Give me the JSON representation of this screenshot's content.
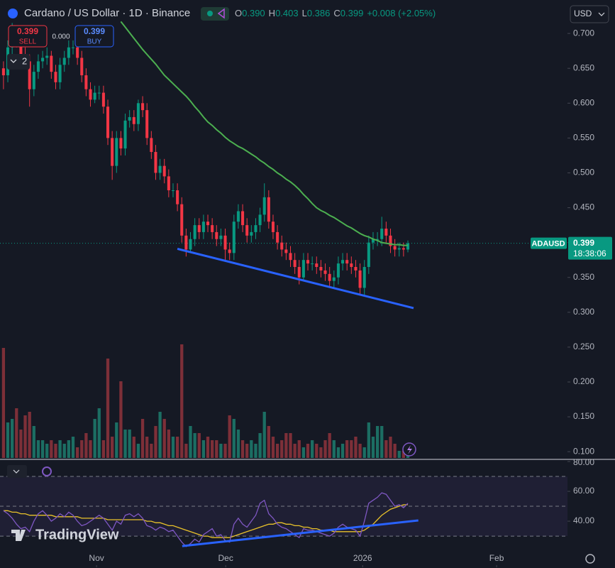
{
  "chart_data": {
    "type": "candlestick",
    "title": "Cardano / US Dollar · 1D · Binance",
    "legend": {
      "o_label": "O",
      "open": "0.390",
      "h_label": "H",
      "high": "0.403",
      "l_label": "L",
      "low": "0.386",
      "c_label": "C",
      "close": "0.399",
      "change": "+0.008 (+2.05%)"
    },
    "up_color": "#089981",
    "down_color": "#f23645",
    "open": [
      0.65,
      0.64,
      0.68,
      0.7,
      0.69,
      0.67,
      0.66,
      0.62,
      0.645,
      0.66,
      0.665,
      0.668,
      0.645,
      0.63,
      0.655,
      0.665,
      0.68,
      0.68,
      0.665,
      0.64,
      0.62,
      0.605,
      0.615,
      0.615,
      0.595,
      0.55,
      0.51,
      0.55,
      0.535,
      0.575,
      0.58,
      0.57,
      0.6,
      0.59,
      0.55,
      0.53,
      0.5,
      0.51,
      0.495,
      0.475,
      0.475,
      0.455,
      0.41,
      0.39,
      0.405,
      0.425,
      0.415,
      0.43,
      0.425,
      0.415,
      0.405,
      0.41,
      0.39,
      0.385,
      0.43,
      0.445,
      0.425,
      0.41,
      0.415,
      0.425,
      0.44,
      0.465,
      0.43,
      0.415,
      0.4,
      0.39,
      0.385,
      0.375,
      0.365,
      0.35,
      0.375,
      0.37,
      0.37,
      0.365,
      0.36,
      0.355,
      0.345,
      0.35,
      0.37,
      0.375,
      0.37,
      0.365,
      0.36,
      0.335,
      0.365,
      0.4,
      0.405,
      0.405,
      0.42,
      0.41,
      0.395,
      0.39,
      0.392,
      0.39
    ],
    "high": [
      0.66,
      0.69,
      0.715,
      0.71,
      0.7,
      0.68,
      0.67,
      0.655,
      0.67,
      0.675,
      0.68,
      0.675,
      0.655,
      0.665,
      0.675,
      0.69,
      0.69,
      0.69,
      0.675,
      0.65,
      0.63,
      0.625,
      0.625,
      0.625,
      0.605,
      0.56,
      0.56,
      0.56,
      0.585,
      0.59,
      0.59,
      0.605,
      0.61,
      0.6,
      0.56,
      0.54,
      0.52,
      0.52,
      0.505,
      0.485,
      0.485,
      0.465,
      0.42,
      0.415,
      0.435,
      0.435,
      0.44,
      0.44,
      0.435,
      0.425,
      0.42,
      0.42,
      0.4,
      0.44,
      0.455,
      0.455,
      0.435,
      0.425,
      0.435,
      0.45,
      0.485,
      0.475,
      0.44,
      0.425,
      0.41,
      0.4,
      0.395,
      0.385,
      0.375,
      0.385,
      0.385,
      0.38,
      0.38,
      0.375,
      0.37,
      0.365,
      0.36,
      0.38,
      0.385,
      0.385,
      0.38,
      0.375,
      0.37,
      0.375,
      0.41,
      0.415,
      0.415,
      0.437,
      0.43,
      0.42,
      0.405,
      0.4,
      0.4,
      0.403
    ],
    "low": [
      0.62,
      0.63,
      0.67,
      0.68,
      0.66,
      0.65,
      0.595,
      0.61,
      0.635,
      0.65,
      0.655,
      0.635,
      0.62,
      0.62,
      0.645,
      0.655,
      0.67,
      0.655,
      0.63,
      0.61,
      0.595,
      0.6,
      0.605,
      0.585,
      0.54,
      0.49,
      0.5,
      0.525,
      0.525,
      0.565,
      0.56,
      0.56,
      0.58,
      0.54,
      0.52,
      0.49,
      0.49,
      0.485,
      0.465,
      0.465,
      0.445,
      0.4,
      0.38,
      0.385,
      0.395,
      0.405,
      0.405,
      0.415,
      0.405,
      0.395,
      0.395,
      0.375,
      0.375,
      0.375,
      0.42,
      0.415,
      0.4,
      0.4,
      0.405,
      0.415,
      0.43,
      0.42,
      0.405,
      0.39,
      0.38,
      0.375,
      0.365,
      0.355,
      0.34,
      0.345,
      0.36,
      0.36,
      0.355,
      0.35,
      0.345,
      0.335,
      0.335,
      0.34,
      0.36,
      0.36,
      0.355,
      0.35,
      0.325,
      0.325,
      0.355,
      0.39,
      0.395,
      0.395,
      0.4,
      0.385,
      0.38,
      0.38,
      0.38,
      0.386
    ],
    "close": [
      0.64,
      0.68,
      0.7,
      0.69,
      0.67,
      0.66,
      0.62,
      0.645,
      0.66,
      0.665,
      0.668,
      0.645,
      0.63,
      0.655,
      0.665,
      0.68,
      0.68,
      0.665,
      0.64,
      0.62,
      0.605,
      0.615,
      0.615,
      0.595,
      0.55,
      0.51,
      0.55,
      0.535,
      0.575,
      0.58,
      0.57,
      0.6,
      0.59,
      0.55,
      0.53,
      0.5,
      0.51,
      0.495,
      0.475,
      0.475,
      0.455,
      0.41,
      0.39,
      0.405,
      0.425,
      0.415,
      0.43,
      0.425,
      0.415,
      0.405,
      0.41,
      0.39,
      0.385,
      0.43,
      0.445,
      0.425,
      0.41,
      0.415,
      0.425,
      0.44,
      0.465,
      0.43,
      0.415,
      0.4,
      0.39,
      0.385,
      0.375,
      0.365,
      0.35,
      0.375,
      0.37,
      0.37,
      0.365,
      0.36,
      0.355,
      0.345,
      0.35,
      0.37,
      0.375,
      0.37,
      0.365,
      0.36,
      0.335,
      0.365,
      0.4,
      0.405,
      0.405,
      0.42,
      0.41,
      0.395,
      0.39,
      0.392,
      0.39,
      0.399
    ],
    "ylim": [
      0.091,
      0.748
    ],
    "yticks": [
      {
        "value": 0.7,
        "label": "0.700"
      },
      {
        "value": 0.65,
        "label": "0.650"
      },
      {
        "value": 0.6,
        "label": "0.600"
      },
      {
        "value": 0.55,
        "label": "0.550"
      },
      {
        "value": 0.5,
        "label": "0.500"
      },
      {
        "value": 0.45,
        "label": "0.450"
      },
      {
        "value": 0.4,
        "label": "0.400"
      },
      {
        "value": 0.35,
        "label": "0.350"
      },
      {
        "value": 0.3,
        "label": "0.300"
      },
      {
        "value": 0.25,
        "label": "0.250"
      },
      {
        "value": 0.2,
        "label": "0.200"
      },
      {
        "value": 0.15,
        "label": "0.150"
      },
      {
        "value": 0.1,
        "label": "0.100"
      }
    ],
    "xlim": [
      -0.8,
      129.7
    ],
    "xticks": [
      {
        "value": 21.4,
        "label": "Nov"
      },
      {
        "value": 51.1,
        "label": "Dec"
      },
      {
        "value": 82.6,
        "label": "2026"
      },
      {
        "value": 113.4,
        "label": "Feb"
      }
    ],
    "ma": {
      "color": "#4caf50",
      "values": [
        null,
        null,
        null,
        null,
        null,
        null,
        null,
        null,
        null,
        null,
        null,
        null,
        null,
        null,
        null,
        null,
        null,
        null,
        null,
        null,
        null,
        null,
        null,
        null,
        null,
        null,
        null,
        0.717,
        0.709,
        0.701,
        0.693,
        0.685,
        0.677,
        0.67,
        0.663,
        0.656,
        0.648,
        0.64,
        0.634,
        0.628,
        0.622,
        0.616,
        0.61,
        0.603,
        0.595,
        0.588,
        0.58,
        0.573,
        0.568,
        0.562,
        0.557,
        0.551,
        0.546,
        0.542,
        0.538,
        0.535,
        0.531,
        0.527,
        0.523,
        0.518,
        0.514,
        0.509,
        0.505,
        0.5,
        0.496,
        0.491,
        0.487,
        0.482,
        0.476,
        0.469,
        0.463,
        0.456,
        0.45,
        0.446,
        0.443,
        0.439,
        0.436,
        0.432,
        0.428,
        0.424,
        0.421,
        0.417,
        0.413,
        0.41,
        0.408,
        0.405,
        0.403,
        0.4,
        0.399,
        0.398,
        0.397,
        0.397,
        0.396,
        0.396
      ]
    },
    "volume": {
      "ylim": [
        0,
        160
      ],
      "up_color": "#1c6e63",
      "down_color": "#7d2f38",
      "values": [
        155,
        50,
        55,
        70,
        40,
        60,
        65,
        45,
        25,
        25,
        20,
        25,
        20,
        25,
        20,
        25,
        30,
        15,
        25,
        35,
        25,
        55,
        70,
        25,
        140,
        30,
        50,
        108,
        40,
        40,
        30,
        20,
        55,
        30,
        20,
        45,
        65,
        55,
        40,
        30,
        30,
        160,
        20,
        45,
        35,
        35,
        25,
        30,
        25,
        25,
        20,
        20,
        60,
        55,
        40,
        25,
        20,
        25,
        20,
        35,
        65,
        45,
        30,
        20,
        25,
        35,
        35,
        20,
        25,
        15,
        20,
        25,
        20,
        15,
        25,
        35,
        25,
        15,
        20,
        25,
        25,
        30,
        20,
        15,
        50,
        30,
        45,
        45,
        25,
        30,
        20,
        10,
        10,
        10
      ]
    },
    "last_price": {
      "value": 0.399,
      "symbol": "ADAUSD",
      "countdown": "18:38:06",
      "color": "#089981"
    },
    "trendline": {
      "x": [
        40,
        94.3
      ],
      "y": [
        0.391,
        0.306
      ],
      "color": "#2962ff"
    },
    "rsi": {
      "ylim": [
        11,
        80
      ],
      "yticks": [
        {
          "value": 80,
          "label": "80.00"
        },
        {
          "value": 60,
          "label": "60.00"
        },
        {
          "value": 40,
          "label": "40.00"
        }
      ],
      "levels": [
        70,
        50,
        30
      ],
      "color": "#7e57c2",
      "ma_color": "#e9c22a",
      "values": [
        47,
        45,
        42,
        38,
        35,
        36,
        33,
        40,
        45,
        47,
        44,
        40,
        42,
        45,
        43,
        46,
        44,
        40,
        37,
        38,
        40,
        42,
        44,
        42,
        38,
        34,
        40,
        38,
        44,
        45,
        43,
        45,
        42,
        37,
        36,
        34,
        36,
        35,
        33,
        34,
        30,
        26,
        23,
        25,
        28,
        26,
        31,
        33,
        35,
        30,
        31,
        27,
        26,
        38,
        42,
        38,
        36,
        40,
        44,
        52,
        54,
        45,
        42,
        38,
        36,
        35,
        33,
        31,
        29,
        35,
        34,
        34,
        33,
        32,
        31,
        30,
        32,
        36,
        38,
        36,
        35,
        34,
        30,
        40,
        52,
        54,
        56,
        59,
        58,
        54,
        50,
        51,
        49,
        52
      ],
      "ma": [
        47,
        47,
        46,
        46,
        45,
        45,
        44,
        44,
        44,
        44,
        44,
        44,
        43,
        43,
        43,
        43,
        43,
        43,
        42,
        42,
        42,
        42,
        42,
        42,
        41,
        41,
        41,
        41,
        41,
        41,
        41,
        41,
        41,
        40,
        40,
        39,
        39,
        38,
        37,
        37,
        36,
        35,
        34,
        33,
        32,
        31,
        30,
        30,
        29,
        29,
        29,
        29,
        29,
        30,
        31,
        32,
        33,
        34,
        35,
        36,
        37,
        38,
        38,
        39,
        39,
        38,
        38,
        37,
        37,
        36,
        36,
        35,
        35,
        34,
        34,
        34,
        33,
        33,
        33,
        33,
        33,
        33,
        33,
        34,
        36,
        38,
        41,
        44,
        46,
        48,
        49,
        50,
        51,
        51
      ],
      "trendline": {
        "x": [
          41.1,
          95.4
        ],
        "y": [
          23.3,
          40.5
        ],
        "color": "#2962ff"
      }
    }
  },
  "toolbar": {
    "sell_price": "0.399",
    "sell": "SELL",
    "spread": "0.000",
    "buy_price": "0.399",
    "buy": "BUY",
    "indicators": "2",
    "currency": "USD",
    "brand": "TradingView"
  }
}
